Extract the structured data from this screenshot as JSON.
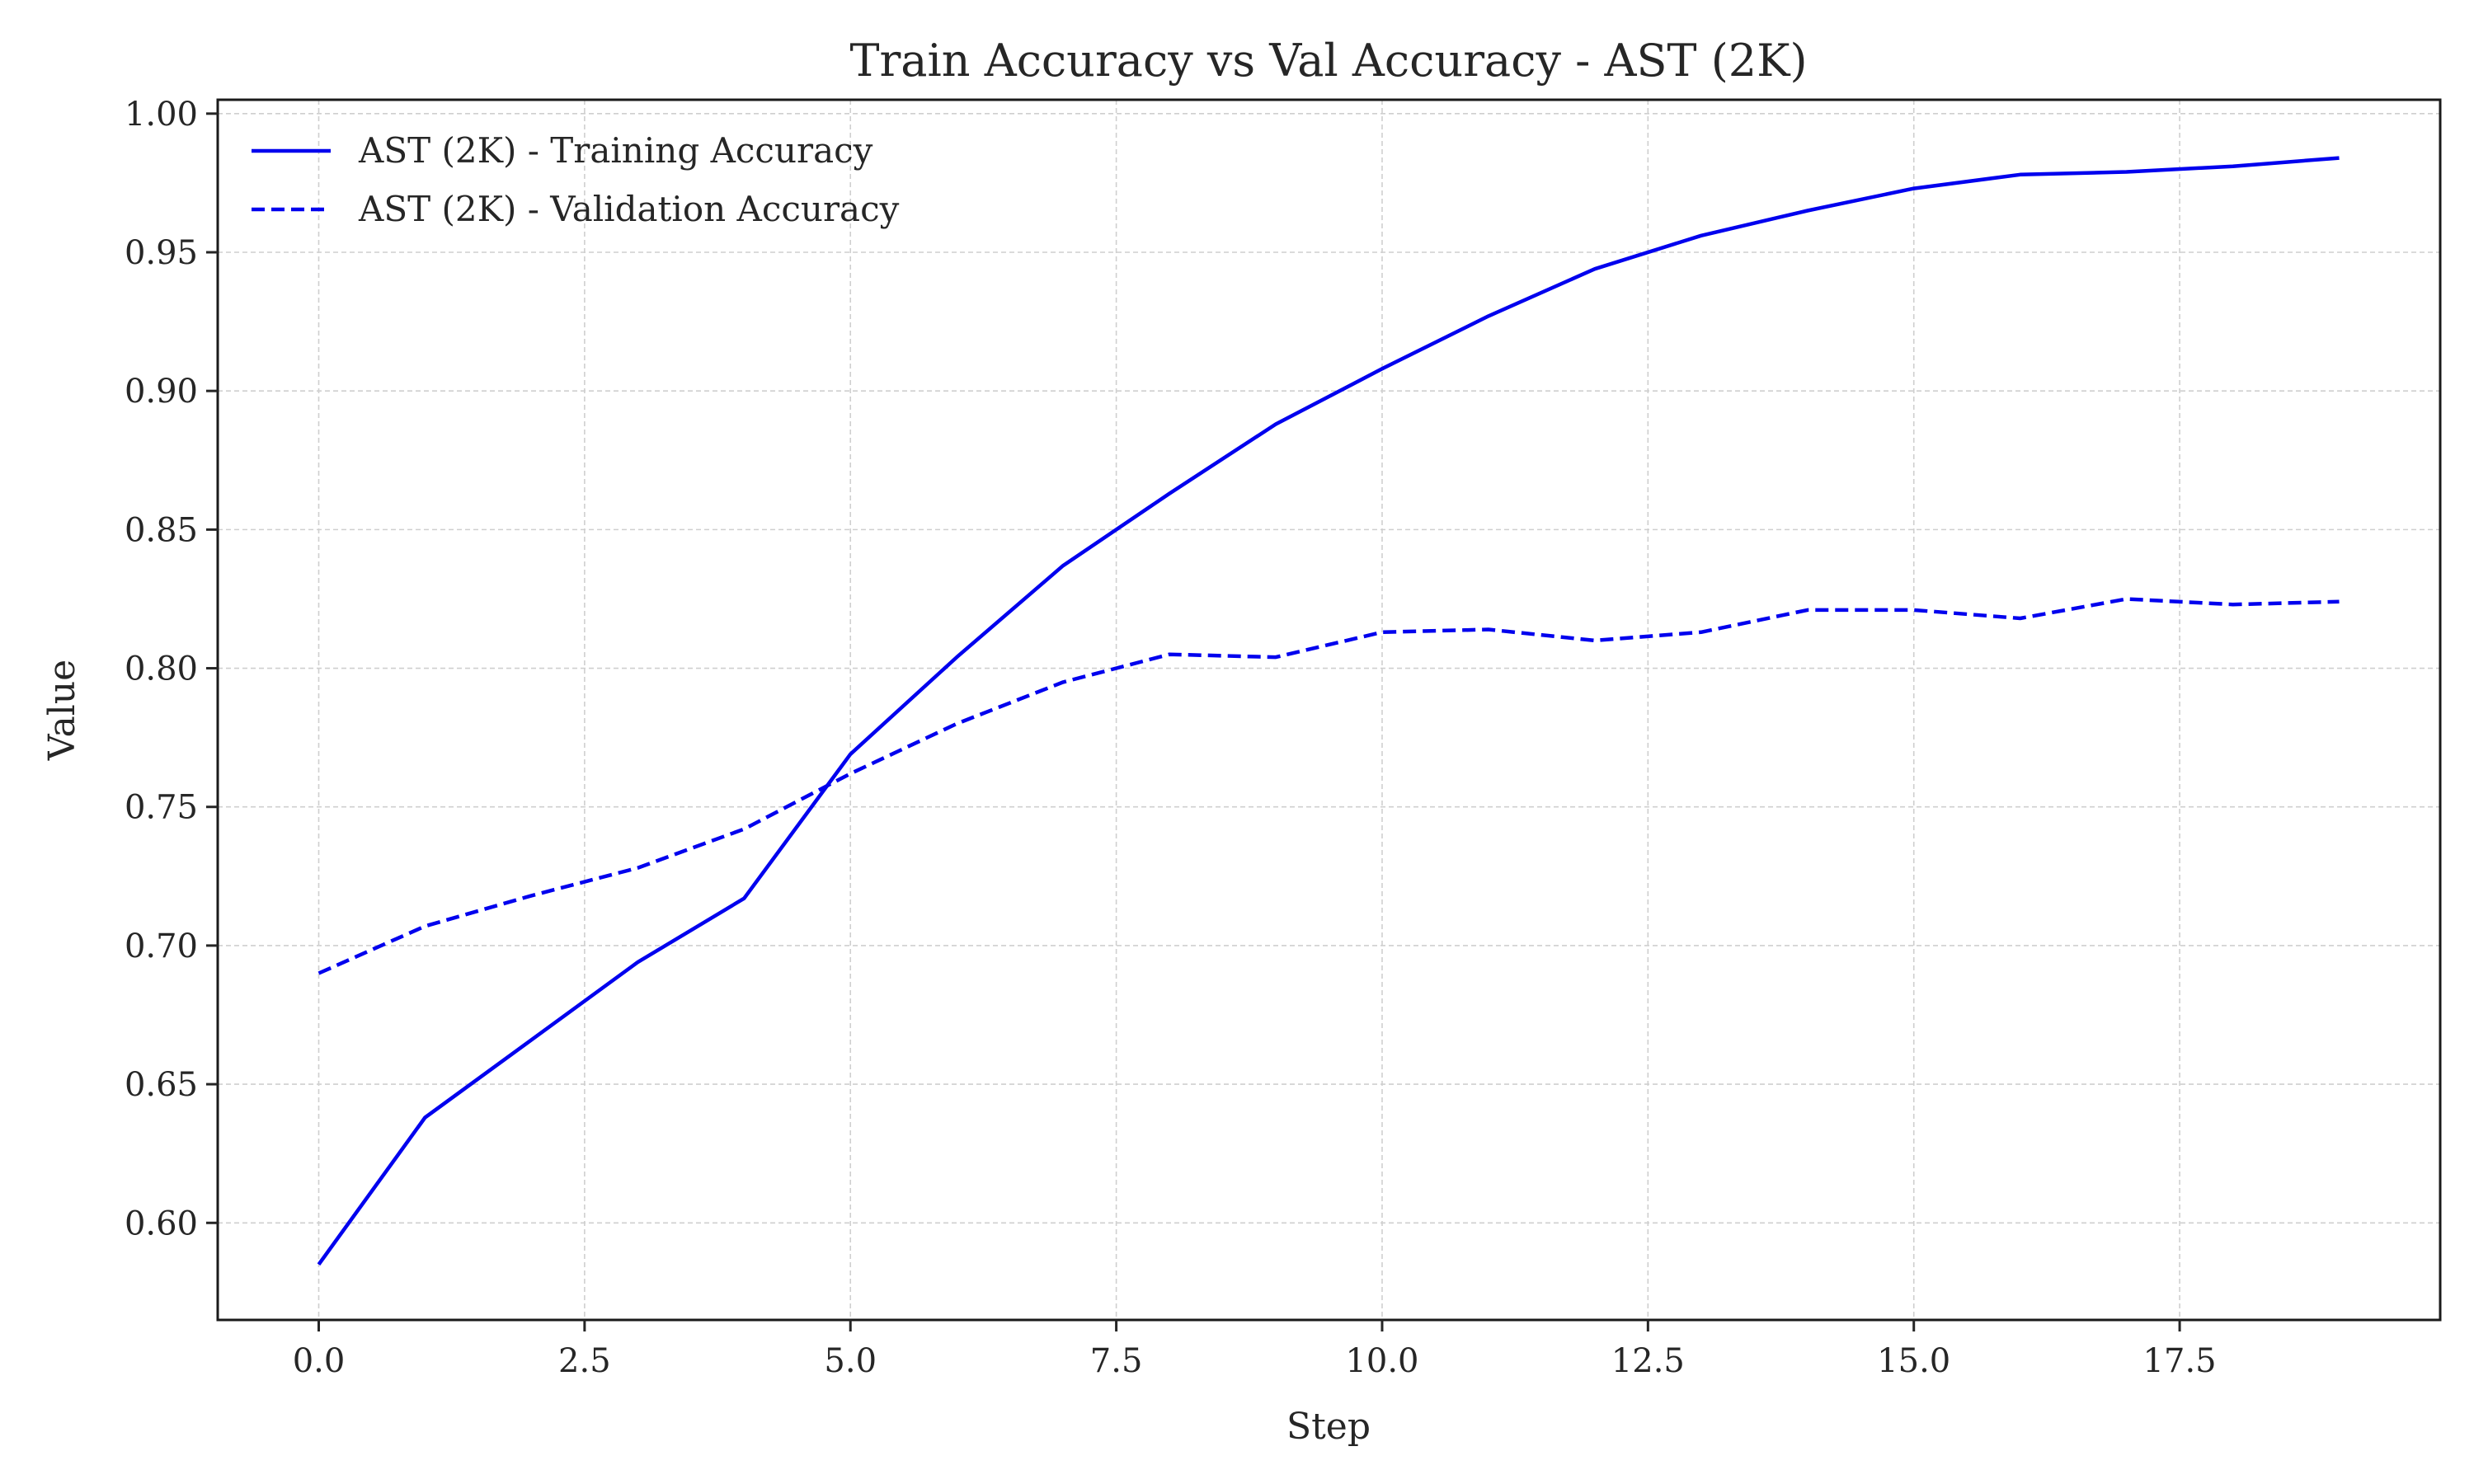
{
  "chart_data": {
    "type": "line",
    "title": "Train Accuracy vs Val Accuracy - AST (2K)",
    "xlabel": "Step",
    "ylabel": "Value",
    "xlim": [
      -0.95,
      19.95
    ],
    "ylim": [
      0.565,
      1.005
    ],
    "xticks": [
      "0.0",
      "2.5",
      "5.0",
      "7.5",
      "10.0",
      "12.5",
      "15.0",
      "17.5"
    ],
    "yticks": [
      "0.60",
      "0.65",
      "0.70",
      "0.75",
      "0.80",
      "0.85",
      "0.90",
      "0.95",
      "1.00"
    ],
    "grid": true,
    "legend_position": "top-left",
    "x": [
      0,
      1,
      2,
      3,
      4,
      5,
      6,
      7,
      8,
      9,
      10,
      11,
      12,
      13,
      14,
      15,
      16,
      17,
      18,
      19
    ],
    "series": [
      {
        "name": "AST (2K) - Training Accuracy",
        "style": "solid",
        "color": "#0000ee",
        "values": [
          0.585,
          0.638,
          0.666,
          0.694,
          0.717,
          0.769,
          0.804,
          0.837,
          0.863,
          0.888,
          0.908,
          0.927,
          0.944,
          0.956,
          0.965,
          0.973,
          0.978,
          0.979,
          0.981,
          0.984
        ]
      },
      {
        "name": "AST (2K) - Validation Accuracy",
        "style": "dashed",
        "color": "#0000ee",
        "values": [
          0.69,
          0.707,
          0.718,
          0.728,
          0.742,
          0.762,
          0.78,
          0.795,
          0.805,
          0.804,
          0.813,
          0.814,
          0.81,
          0.813,
          0.821,
          0.821,
          0.818,
          0.825,
          0.823,
          0.824
        ]
      }
    ]
  }
}
